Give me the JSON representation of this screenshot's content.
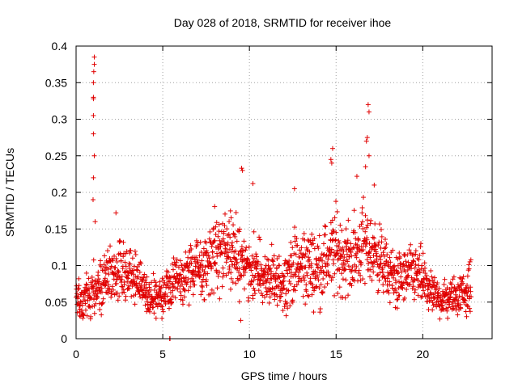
{
  "chart_data": {
    "type": "scatter",
    "title": "Day 028 of 2018, SRMTID for receiver ihoe",
    "xlabel": "GPS time / hours",
    "ylabel": "SRMTID / TECUs",
    "xlim": [
      0,
      24
    ],
    "ylim": [
      0,
      0.4
    ],
    "x_ticks": [
      0,
      5,
      10,
      15,
      20
    ],
    "x_tick_labels": [
      "0",
      "5",
      "10",
      "15",
      "20"
    ],
    "y_ticks": [
      0,
      0.05,
      0.1,
      0.15,
      0.2,
      0.25,
      0.3,
      0.35,
      0.4
    ],
    "y_tick_labels": [
      "0",
      "0.05",
      "0.1",
      "0.15",
      "0.2",
      "0.25",
      "0.3",
      "0.35",
      "0.4"
    ],
    "grid": true,
    "marker": "+",
    "color": "#e00000",
    "series": [
      {
        "name": "SRMTID",
        "profile_hours": [
          0,
          0.5,
          1,
          1.5,
          2,
          2.5,
          3,
          3.5,
          4,
          4.5,
          5,
          5.5,
          6,
          6.5,
          7,
          7.5,
          8,
          8.5,
          9,
          9.5,
          10,
          10.5,
          11,
          11.5,
          12,
          12.5,
          13,
          13.5,
          14,
          14.5,
          15,
          15.5,
          16,
          16.5,
          17,
          17.5,
          18,
          18.5,
          19,
          19.5,
          20,
          20.5,
          21,
          21.5,
          22,
          22.5,
          22.8
        ],
        "profile_median": [
          0.05,
          0.055,
          0.07,
          0.08,
          0.085,
          0.09,
          0.095,
          0.085,
          0.06,
          0.055,
          0.06,
          0.07,
          0.08,
          0.09,
          0.095,
          0.1,
          0.12,
          0.12,
          0.115,
          0.11,
          0.1,
          0.09,
          0.08,
          0.075,
          0.08,
          0.095,
          0.1,
          0.1,
          0.095,
          0.11,
          0.12,
          0.11,
          0.11,
          0.13,
          0.12,
          0.11,
          0.09,
          0.08,
          0.085,
          0.09,
          0.08,
          0.06,
          0.055,
          0.055,
          0.06,
          0.065,
          0.07
        ],
        "profile_spread": [
          0.02,
          0.025,
          0.03,
          0.03,
          0.03,
          0.03,
          0.03,
          0.025,
          0.02,
          0.02,
          0.02,
          0.025,
          0.025,
          0.03,
          0.03,
          0.035,
          0.04,
          0.04,
          0.04,
          0.035,
          0.035,
          0.03,
          0.03,
          0.03,
          0.03,
          0.035,
          0.04,
          0.04,
          0.035,
          0.04,
          0.045,
          0.04,
          0.04,
          0.045,
          0.04,
          0.035,
          0.03,
          0.03,
          0.03,
          0.03,
          0.03,
          0.02,
          0.02,
          0.02,
          0.02,
          0.025,
          0.03
        ],
        "spikes": [
          {
            "x": 1.05,
            "y": 0.385
          },
          {
            "x": 1.05,
            "y": 0.375
          },
          {
            "x": 1.02,
            "y": 0.365
          },
          {
            "x": 1.0,
            "y": 0.35
          },
          {
            "x": 1.0,
            "y": 0.33
          },
          {
            "x": 1.0,
            "y": 0.328
          },
          {
            "x": 1.0,
            "y": 0.305
          },
          {
            "x": 1.0,
            "y": 0.28
          },
          {
            "x": 1.05,
            "y": 0.25
          },
          {
            "x": 1.0,
            "y": 0.22
          },
          {
            "x": 0.98,
            "y": 0.19
          },
          {
            "x": 1.1,
            "y": 0.16
          },
          {
            "x": 2.3,
            "y": 0.172
          },
          {
            "x": 9.55,
            "y": 0.233
          },
          {
            "x": 9.6,
            "y": 0.23
          },
          {
            "x": 10.2,
            "y": 0.212
          },
          {
            "x": 12.6,
            "y": 0.205
          },
          {
            "x": 14.8,
            "y": 0.26
          },
          {
            "x": 14.7,
            "y": 0.245
          },
          {
            "x": 14.75,
            "y": 0.24
          },
          {
            "x": 16.85,
            "y": 0.32
          },
          {
            "x": 16.9,
            "y": 0.31
          },
          {
            "x": 16.8,
            "y": 0.275
          },
          {
            "x": 16.75,
            "y": 0.27
          },
          {
            "x": 16.9,
            "y": 0.25
          },
          {
            "x": 16.7,
            "y": 0.235
          },
          {
            "x": 16.2,
            "y": 0.222
          },
          {
            "x": 17.2,
            "y": 0.21
          },
          {
            "x": 9.5,
            "y": 0.025
          },
          {
            "x": 5.4,
            "y": 0.0
          },
          {
            "x": 5.42,
            "y": 0.0
          }
        ]
      }
    ]
  }
}
